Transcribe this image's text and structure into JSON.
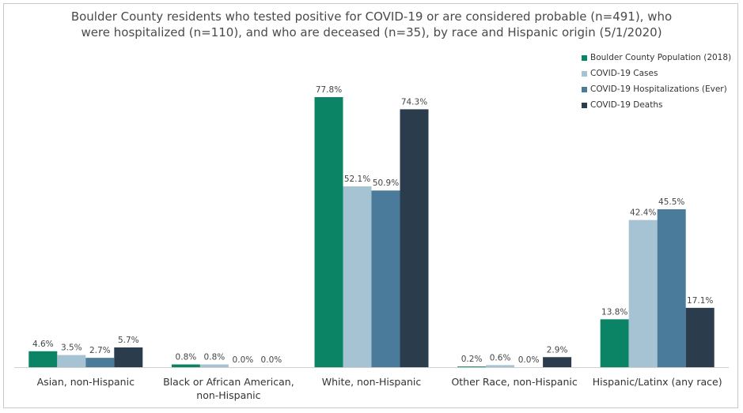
{
  "chart_data": {
    "type": "bar",
    "title_lines": [
      "Boulder County residents who tested positive for COVID-19 or are considered probable (n=491), who",
      "were hospitalized (n=110), and who are deceased (n=35), by race and Hispanic origin (5/1/2020)"
    ],
    "categories": [
      [
        "Asian, non-Hispanic"
      ],
      [
        "Black or African American,",
        "non-Hispanic"
      ],
      [
        "White, non-Hispanic"
      ],
      [
        "Other Race, non-Hispanic"
      ],
      [
        "Hispanic/Latinx (any race)"
      ]
    ],
    "series": [
      {
        "name": "Boulder County Population (2018)",
        "color": "#0b8466",
        "values": [
          4.6,
          0.8,
          77.8,
          0.2,
          13.8
        ],
        "labels": [
          "4.6%",
          "0.8%",
          "77.8%",
          "0.2%",
          "13.8%"
        ]
      },
      {
        "name": "COVID-19 Cases",
        "color": "#a6c3d4",
        "values": [
          3.5,
          0.8,
          52.1,
          0.6,
          42.4
        ],
        "labels": [
          "3.5%",
          "0.8%",
          "52.1%",
          "0.6%",
          "42.4%"
        ]
      },
      {
        "name": "COVID-19 Hospitalizations (Ever)",
        "color": "#4b7b9b",
        "values": [
          2.7,
          0.0,
          50.9,
          0.0,
          45.5
        ],
        "labels": [
          "2.7%",
          "0.0%",
          "50.9%",
          "0.0%",
          "45.5%"
        ]
      },
      {
        "name": "COVID-19 Deaths",
        "color": "#2b3d4c",
        "values": [
          5.7,
          0.0,
          74.3,
          2.9,
          17.1
        ],
        "labels": [
          "5.7%",
          "0.0%",
          "74.3%",
          "2.9%",
          "17.1%"
        ]
      }
    ],
    "ylim": [
      0,
      77.8
    ],
    "grid": false,
    "legend_position": "top-right",
    "axis_color": "#d0d0d0"
  }
}
